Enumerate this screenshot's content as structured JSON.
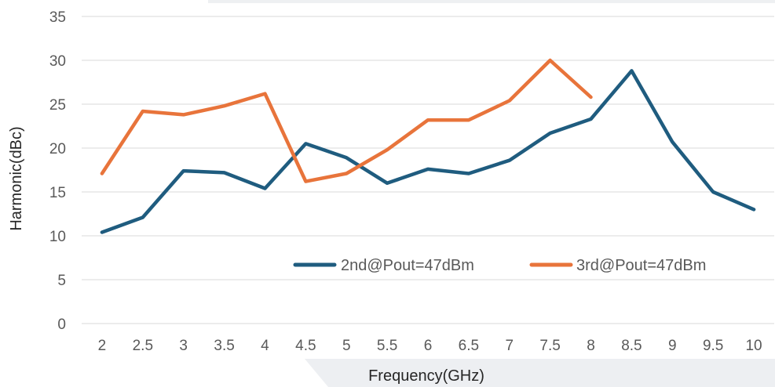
{
  "chart_data": {
    "type": "line",
    "xlabel": "Frequency(GHz)",
    "ylabel": "Harmonic(dBc)",
    "ylim": [
      0,
      35
    ],
    "yticks": [
      "0",
      "5",
      "10",
      "15",
      "20",
      "25",
      "30",
      "35"
    ],
    "categories": [
      "2",
      "2.5",
      "3",
      "3.5",
      "4",
      "4.5",
      "5",
      "5.5",
      "6",
      "6.5",
      "7",
      "7.5",
      "8",
      "8.5",
      "9",
      "9.5",
      "10"
    ],
    "grid": true,
    "legend_position": "inside-bottom-right",
    "series": [
      {
        "name": "2nd@Pout=47dBm",
        "color": "#1f5c7f",
        "values": [
          10.4,
          12.1,
          17.4,
          17.2,
          15.4,
          20.5,
          18.9,
          16.0,
          17.6,
          17.1,
          18.6,
          21.7,
          23.3,
          28.8,
          20.7,
          15.0,
          13.0
        ]
      },
      {
        "name": "3rd@Pout=47dBm",
        "color": "#e8743b",
        "values": [
          17.1,
          24.2,
          23.8,
          24.8,
          26.2,
          16.2,
          17.1,
          19.8,
          23.2,
          23.2,
          25.4,
          30.0,
          25.8,
          null,
          null,
          null,
          null
        ]
      }
    ]
  }
}
